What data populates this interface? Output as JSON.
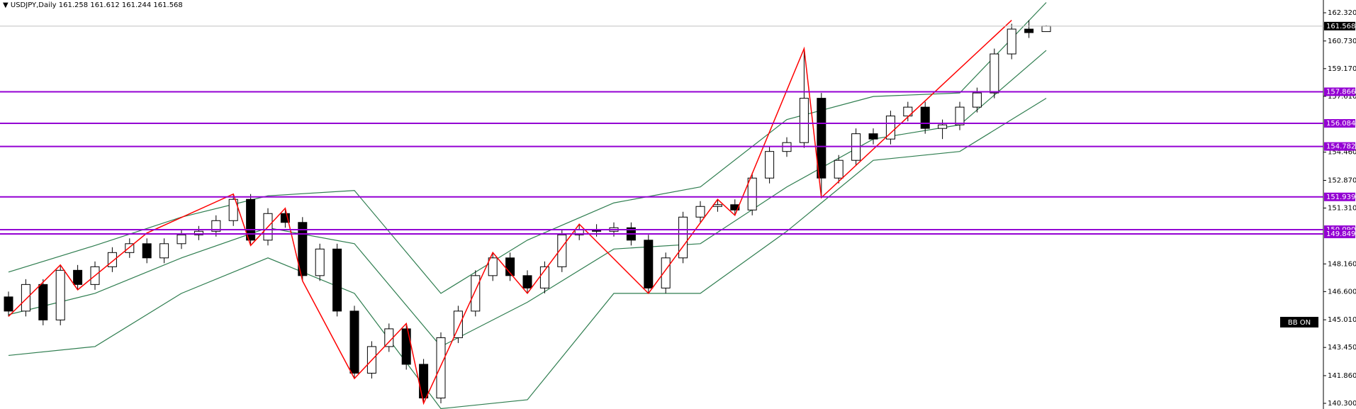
{
  "chart_data": {
    "type": "candlestick",
    "symbol": "USDJPY,Daily",
    "open": [
      146.3,
      145.5,
      147,
      145,
      147.8,
      147,
      148,
      148.8,
      149.3,
      148.5,
      149.3,
      149.8,
      150,
      150.6,
      151.8,
      149.5,
      151,
      150.5,
      147.5,
      149,
      145.5,
      142,
      143.5,
      144.5,
      142.5,
      140.6,
      144,
      145.5,
      147.5,
      148.5,
      147.5,
      146.8,
      148,
      149.8,
      150.1,
      150,
      150.2,
      149.5,
      146.8,
      148.5,
      150.8,
      151.4,
      151.5,
      151.2,
      153,
      154.5,
      155,
      157.5,
      153,
      154,
      155.5,
      155.2,
      156.5,
      157,
      155.8,
      156,
      157,
      157.8,
      160,
      161.4,
      161.258
    ],
    "high": [
      146.6,
      147.3,
      147.3,
      148.1,
      148.1,
      148.3,
      149.1,
      149.6,
      149.6,
      149.6,
      150.1,
      150.3,
      150.9,
      152.1,
      152.1,
      151.3,
      151.3,
      150.8,
      149.3,
      149.3,
      145.8,
      143.8,
      144.8,
      144.8,
      142.8,
      144.3,
      145.8,
      147.8,
      148.8,
      148.8,
      147.8,
      148.3,
      150.1,
      150.4,
      150.4,
      150.5,
      150.5,
      149.8,
      148.8,
      151.1,
      151.7,
      151.8,
      151.8,
      153.3,
      154.8,
      155.3,
      160.3,
      157.8,
      154.3,
      155.8,
      155.8,
      156.8,
      157.3,
      157.3,
      156.3,
      157.3,
      158.1,
      160.3,
      161.7,
      161.9,
      161.612
    ],
    "low": [
      145.2,
      145.2,
      144.7,
      144.7,
      146.7,
      146.7,
      147.7,
      148.5,
      148.2,
      148.2,
      149,
      149.5,
      149.7,
      150.3,
      149.2,
      149.2,
      150.2,
      147.2,
      147.2,
      145.2,
      141.7,
      141.7,
      143.2,
      142.2,
      140.3,
      140.3,
      143.7,
      145.2,
      147.2,
      147.2,
      146.5,
      146.5,
      147.7,
      149.5,
      149.7,
      149.7,
      149.2,
      146.5,
      146.5,
      148.2,
      150.5,
      151.1,
      150.9,
      150.9,
      152.7,
      154.2,
      154.7,
      151.9,
      152.7,
      153.7,
      154.9,
      154.9,
      156.2,
      155.5,
      155.2,
      155.7,
      156.7,
      157.5,
      159.7,
      160.9,
      161.244
    ],
    "close": [
      145.5,
      147,
      145,
      147.8,
      147,
      148,
      148.8,
      149.3,
      148.5,
      149.3,
      149.8,
      150,
      150.6,
      151.8,
      149.5,
      151,
      150.5,
      147.5,
      149,
      145.5,
      142,
      143.5,
      144.5,
      142.5,
      140.6,
      144,
      145.5,
      147.5,
      148.5,
      147.5,
      146.8,
      148,
      149.8,
      150.1,
      150,
      150.2,
      149.5,
      146.8,
      148.5,
      150.8,
      151.4,
      151.5,
      151.2,
      153,
      154.5,
      155,
      157.5,
      153,
      154,
      155.5,
      155.2,
      156.5,
      157,
      155.8,
      156,
      157,
      157.8,
      160,
      161.4,
      161.2,
      161.568
    ],
    "ylim": [
      139.98,
      163.04
    ],
    "yticks": [
      {
        "value": 162.32,
        "label": "162.320"
      },
      {
        "value": 160.73,
        "label": "160.730"
      },
      {
        "value": 159.17,
        "label": "159.170"
      },
      {
        "value": 157.61,
        "label": "157.610"
      },
      {
        "value": 154.46,
        "label": "154.460"
      },
      {
        "value": 152.87,
        "label": "152.870"
      },
      {
        "value": 151.31,
        "label": "151.310"
      },
      {
        "value": 148.16,
        "label": "148.160"
      },
      {
        "value": 146.6,
        "label": "146.600"
      },
      {
        "value": 145.01,
        "label": "145.010"
      },
      {
        "value": 143.45,
        "label": "143.450"
      },
      {
        "value": 141.86,
        "label": "141.860"
      },
      {
        "value": 140.3,
        "label": "140.300"
      }
    ],
    "bands": {
      "color": "#2e7d4f",
      "x": [
        0,
        5,
        10,
        15,
        20,
        25,
        30,
        35,
        40,
        45,
        50,
        55,
        60
      ],
      "upper": [
        147.7,
        149.2,
        150.8,
        152,
        152.3,
        146.5,
        149.5,
        151.6,
        152.5,
        156.3,
        157.6,
        157.8,
        162.9
      ],
      "middle": [
        145.3,
        146.5,
        148.5,
        150.2,
        149.3,
        143.5,
        146,
        149,
        149.3,
        152.5,
        155.2,
        156,
        160.2
      ],
      "lower": [
        143,
        143.5,
        146.5,
        148.5,
        146.5,
        140,
        140.5,
        146.5,
        146.5,
        150,
        154,
        154.5,
        157.5
      ]
    },
    "zigzag": {
      "color": "#ff0000",
      "x": [
        0,
        3,
        4,
        8,
        13,
        14,
        16,
        17,
        20,
        23,
        24,
        28,
        30,
        33,
        37,
        41,
        42,
        46,
        47,
        58
      ],
      "values": [
        145.2,
        148.1,
        146.7,
        149.9,
        152.1,
        149.2,
        151.3,
        147.2,
        141.7,
        144.8,
        140.3,
        148.8,
        146.5,
        150.4,
        146.5,
        151.8,
        150.9,
        160.3,
        151.9,
        161.9
      ]
    },
    "levels": {
      "color": "#9400d3",
      "values": [
        157.866,
        156.084,
        154.782,
        151.939,
        {
          "value": 150.09,
          "label": "150.090"
        },
        149.849
      ]
    },
    "price_line_color": "#c0c0c0",
    "button": "BB ON"
  }
}
